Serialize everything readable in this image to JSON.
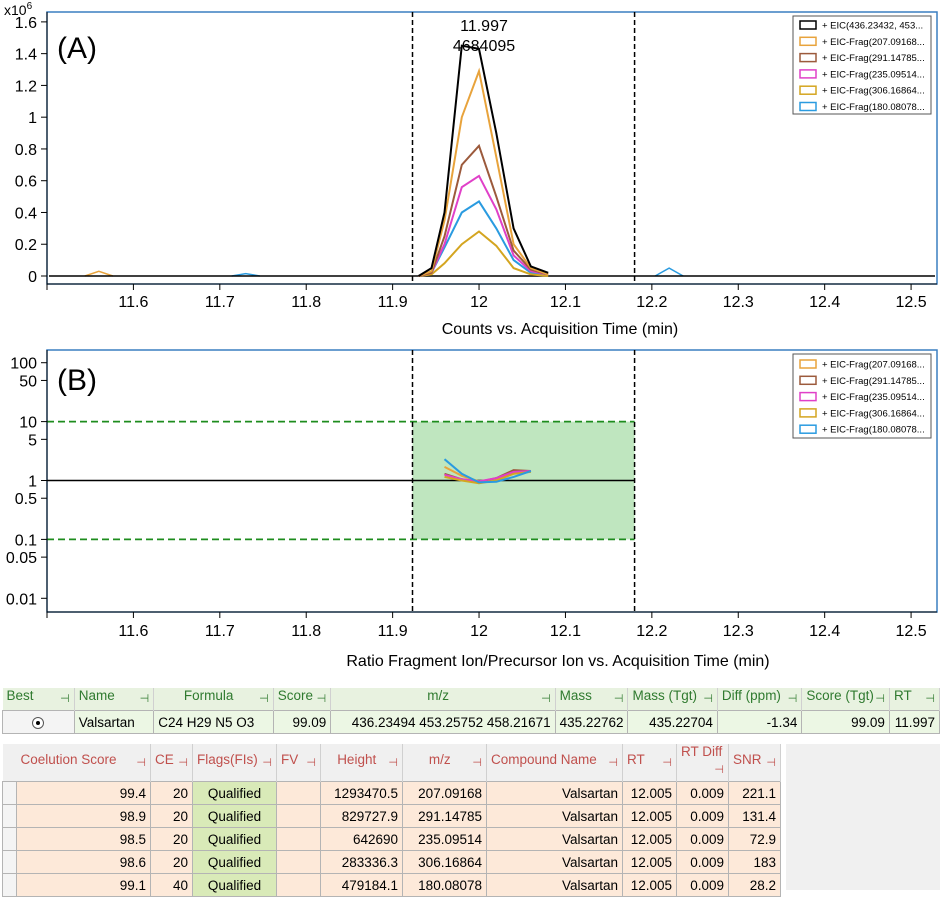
{
  "panel_a": {
    "label": "(A)",
    "exponent_label": "x10",
    "exponent_sup": "6",
    "peak_rt": "11.997",
    "peak_area": "4684095",
    "xlabel": "Counts vs. Acquisition Time (min)"
  },
  "panel_b": {
    "label": "(B)",
    "xlabel": "Ratio Fragment Ion/Precursor Ion vs. Acquisition Time (min)"
  },
  "chart_data": [
    {
      "type": "line",
      "title": "(A)",
      "xlabel": "Counts vs. Acquisition Time (min)",
      "ylabel": "",
      "y_multiplier": "x10^6",
      "xlim": [
        11.5,
        12.53
      ],
      "ylim": [
        0,
        1.7
      ],
      "x_ticks": [
        "11.6",
        "11.7",
        "11.8",
        "11.9",
        "12",
        "12.1",
        "12.2",
        "12.3",
        "12.4",
        "12.5"
      ],
      "y_ticks": [
        "0",
        "0.2",
        "0.4",
        "0.6",
        "0.8",
        "1",
        "1.2",
        "1.4",
        "1.6"
      ],
      "vertical_markers": [
        11.923,
        12.18
      ],
      "annotation": {
        "x": 11.997,
        "lines": [
          "11.997",
          "4684095"
        ]
      },
      "legend": "top-right",
      "grid": false,
      "x": [
        11.93,
        11.945,
        11.96,
        11.98,
        12.0,
        12.02,
        12.04,
        12.06,
        12.08
      ],
      "series": [
        {
          "name": "+ EIC(436.23432, 453...",
          "color": "#000000",
          "values": [
            0.0,
            0.05,
            0.4,
            1.45,
            1.43,
            0.9,
            0.3,
            0.06,
            0.02
          ]
        },
        {
          "name": "+ EIC-Frag(207.09168...",
          "color": "#e8a33c",
          "values": [
            0.0,
            0.03,
            0.35,
            1.0,
            1.29,
            0.75,
            0.2,
            0.05,
            0.01
          ]
        },
        {
          "name": "+ EIC-Frag(291.14785...",
          "color": "#9c5a3c",
          "values": [
            0.0,
            0.02,
            0.25,
            0.7,
            0.82,
            0.5,
            0.16,
            0.04,
            0.01
          ]
        },
        {
          "name": "+ EIC-Frag(235.09514...",
          "color": "#e040c8",
          "values": [
            0.0,
            0.02,
            0.2,
            0.56,
            0.63,
            0.42,
            0.13,
            0.03,
            0.01
          ]
        },
        {
          "name": "+ EIC-Frag(306.16864...",
          "color": "#d4a520",
          "values": [
            0.0,
            0.01,
            0.08,
            0.2,
            0.28,
            0.19,
            0.05,
            0.01,
            0.0
          ]
        },
        {
          "name": "+ EIC-Frag(180.08078...",
          "color": "#2a9be0",
          "values": [
            0.0,
            0.02,
            0.18,
            0.4,
            0.47,
            0.3,
            0.1,
            0.02,
            0.0
          ]
        }
      ],
      "baseline_noise": [
        {
          "color": "#e8a33c",
          "x": 11.56,
          "y": 0.03
        },
        {
          "color": "#2a9be0",
          "x": 11.73,
          "y": 0.015
        },
        {
          "color": "#2a9be0",
          "x": 12.22,
          "y": 0.05
        }
      ]
    },
    {
      "type": "line",
      "title": "(B)",
      "xlabel": "Ratio Fragment Ion/Precursor Ion vs. Acquisition Time (min)",
      "ylabel": "",
      "y_scale": "log",
      "xlim": [
        11.5,
        12.53
      ],
      "ylim": [
        0.008,
        130
      ],
      "x_ticks": [
        "11.6",
        "11.7",
        "11.8",
        "11.9",
        "12",
        "12.1",
        "12.2",
        "12.3",
        "12.4",
        "12.5"
      ],
      "y_ticks": [
        "0.01",
        "0.05",
        "0.1",
        "0.5",
        "1",
        "5",
        "10",
        "50",
        "100"
      ],
      "y_tick_values": [
        0.01,
        0.05,
        0.1,
        0.5,
        1,
        5,
        10,
        50,
        100
      ],
      "vertical_markers": [
        11.923,
        12.18
      ],
      "reference_line": 1,
      "tolerance_band": [
        0.1,
        10
      ],
      "legend": "top-right",
      "grid": false,
      "x": [
        11.96,
        11.98,
        12.0,
        12.02,
        12.04,
        12.06
      ],
      "series": [
        {
          "name": "+ EIC-Frag(207.09168...",
          "color": "#e8a33c",
          "values": [
            1.7,
            1.2,
            0.97,
            1.05,
            1.35,
            1.45
          ]
        },
        {
          "name": "+ EIC-Frag(291.14785...",
          "color": "#9c5a3c",
          "values": [
            1.3,
            1.05,
            0.95,
            1.1,
            1.5,
            1.45
          ]
        },
        {
          "name": "+ EIC-Frag(235.09514...",
          "color": "#e040c8",
          "values": [
            1.25,
            1.05,
            0.97,
            1.1,
            1.4,
            1.45
          ]
        },
        {
          "name": "+ EIC-Frag(306.16864...",
          "color": "#d4a520",
          "values": [
            1.15,
            1.0,
            0.9,
            1.0,
            1.3,
            1.4
          ]
        },
        {
          "name": "+ EIC-Frag(180.08078...",
          "color": "#2a9be0",
          "values": [
            2.3,
            1.3,
            0.93,
            0.95,
            1.15,
            1.45
          ]
        }
      ]
    }
  ],
  "table1": {
    "headers": [
      "Best",
      "Name",
      "Formula",
      "Score",
      "m/z",
      "Mass",
      "Mass (Tgt)",
      "Diff (ppm)",
      "Score (Tgt)",
      "RT"
    ],
    "row": {
      "name": "Valsartan",
      "formula": "C24 H29 N5 O3",
      "score": "99.09",
      "mz": "436.23494 453.25752 458.21671",
      "mass": "435.22762",
      "mass_tgt": "435.22704",
      "diff_ppm": "-1.34",
      "score_tgt": "99.09",
      "rt": "11.997"
    }
  },
  "table2": {
    "headers": [
      "Coelution Score",
      "CE",
      "Flags(FIs)",
      "FV",
      "Height",
      "m/z",
      "Compound Name",
      "RT",
      "RT Diff",
      "SNR"
    ],
    "rows": [
      {
        "coelution": "99.4",
        "ce": "20",
        "flags": "Qualified",
        "fv": "",
        "height": "1293470.5",
        "mz": "207.09168",
        "compound": "Valsartan",
        "rt": "12.005",
        "rt_diff": "0.009",
        "snr": "221.1"
      },
      {
        "coelution": "98.9",
        "ce": "20",
        "flags": "Qualified",
        "fv": "",
        "height": "829727.9",
        "mz": "291.14785",
        "compound": "Valsartan",
        "rt": "12.005",
        "rt_diff": "0.009",
        "snr": "131.4"
      },
      {
        "coelution": "98.5",
        "ce": "20",
        "flags": "Qualified",
        "fv": "",
        "height": "642690",
        "mz": "235.09514",
        "compound": "Valsartan",
        "rt": "12.005",
        "rt_diff": "0.009",
        "snr": "72.9"
      },
      {
        "coelution": "98.6",
        "ce": "20",
        "flags": "Qualified",
        "fv": "",
        "height": "283336.3",
        "mz": "306.16864",
        "compound": "Valsartan",
        "rt": "12.005",
        "rt_diff": "0.009",
        "snr": "183"
      },
      {
        "coelution": "99.1",
        "ce": "40",
        "flags": "Qualified",
        "fv": "",
        "height": "479184.1",
        "mz": "180.08078",
        "compound": "Valsartan",
        "rt": "12.005",
        "rt_diff": "0.009",
        "snr": "28.2"
      }
    ]
  },
  "colors": {
    "frame": "#3a7fc1",
    "band_fill": "#bfe6bf",
    "band_line": "#1e8c1e"
  }
}
